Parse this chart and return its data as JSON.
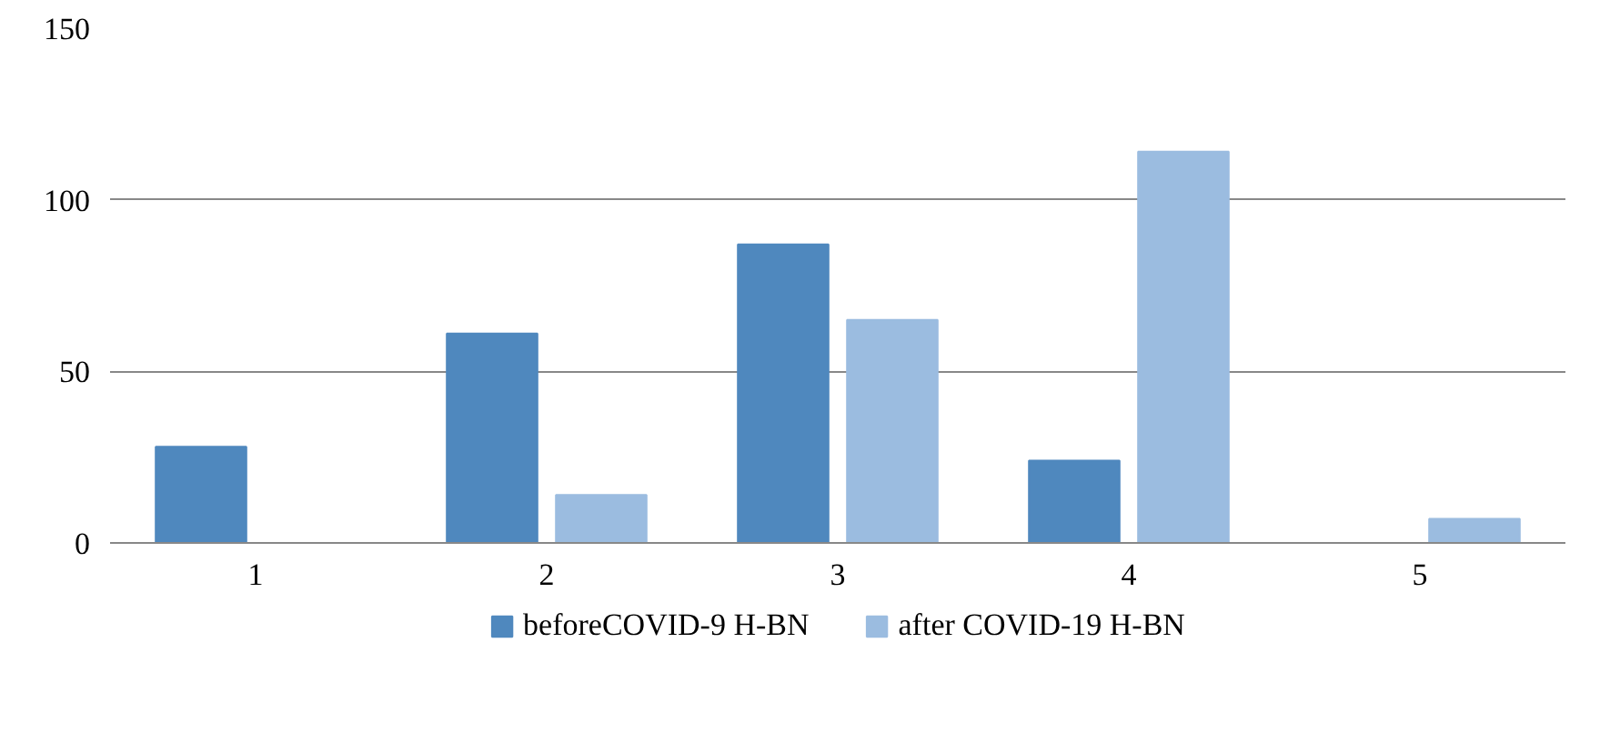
{
  "chart_data": {
    "type": "bar",
    "categories": [
      "1",
      "2",
      "3",
      "4",
      "5"
    ],
    "series": [
      {
        "name": "beforeCOVID-9 H-BN",
        "color": "#4f88be",
        "values": [
          28,
          61,
          87,
          24,
          0
        ]
      },
      {
        "name": "after COVID-19 H-BN",
        "color": "#9bbce0",
        "values": [
          0,
          14,
          65,
          114,
          7
        ]
      }
    ],
    "ylim": [
      0,
      150
    ],
    "yticks": [
      0,
      50,
      100,
      150
    ],
    "grid": "y",
    "legend": "bottom"
  }
}
